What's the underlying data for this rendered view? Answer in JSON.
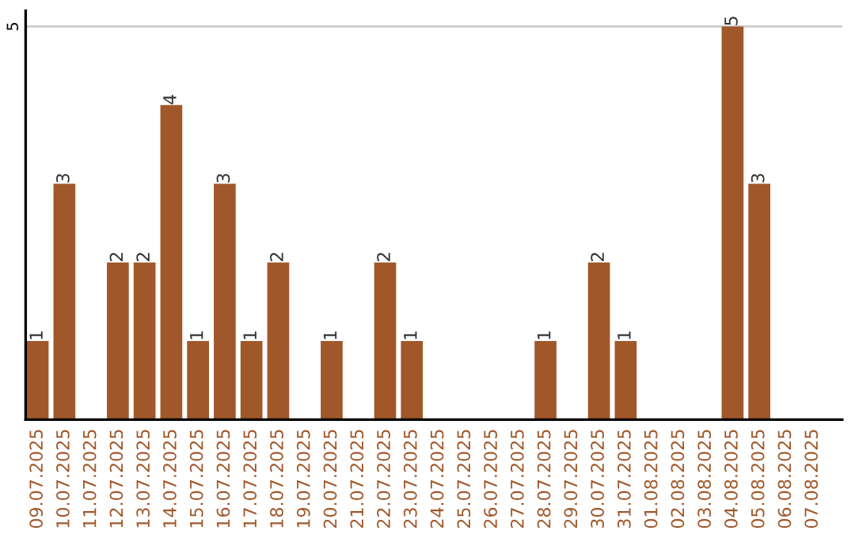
{
  "chart_data": {
    "type": "bar",
    "categories": [
      "09.07.2025",
      "10.07.2025",
      "11.07.2025",
      "12.07.2025",
      "13.07.2025",
      "14.07.2025",
      "15.07.2025",
      "16.07.2025",
      "17.07.2025",
      "18.07.2025",
      "19.07.2025",
      "20.07.2025",
      "21.07.2025",
      "22.07.2025",
      "23.07.2025",
      "24.07.2025",
      "25.07.2025",
      "26.07.2025",
      "27.07.2025",
      "28.07.2025",
      "29.07.2025",
      "30.07.2025",
      "31.07.2025",
      "01.08.2025",
      "02.08.2025",
      "03.08.2025",
      "04.08.2025",
      "05.08.2025",
      "06.08.2025",
      "07.08.2025"
    ],
    "values": [
      1,
      3,
      0,
      2,
      2,
      4,
      1,
      3,
      1,
      2,
      0,
      1,
      0,
      2,
      1,
      0,
      0,
      0,
      0,
      1,
      0,
      2,
      1,
      0,
      0,
      0,
      5,
      3,
      0,
      0
    ],
    "value_labels": [
      "1",
      "3",
      null,
      "2",
      "2",
      "4",
      "1",
      "3",
      "1",
      "2",
      null,
      "1",
      null,
      "2",
      "1",
      null,
      null,
      null,
      null,
      "1",
      null,
      "2",
      "1",
      null,
      null,
      null,
      "5",
      "3",
      null,
      null
    ],
    "color": "#a0582a",
    "ylim": [
      0,
      5.2
    ],
    "yticks": [
      5
    ],
    "grid": "y"
  }
}
